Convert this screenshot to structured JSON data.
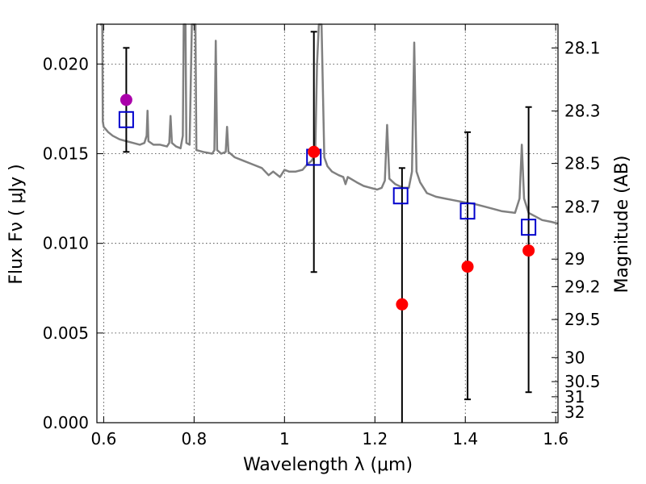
{
  "chart_data": {
    "type": "scatter",
    "xlabel": "Wavelength  λ (μm)",
    "ylabel": "Flux  Fν  ( μJy )",
    "ylabel_right": "Magnitude (AB)",
    "xlim": [
      0.585,
      1.605
    ],
    "ylim": [
      0.0,
      0.02222
    ],
    "grid": true,
    "x_ticks": [
      {
        "value": 0.6,
        "label": "0.6"
      },
      {
        "value": 0.8,
        "label": "0.8"
      },
      {
        "value": 1.0,
        "label": "1"
      },
      {
        "value": 1.2,
        "label": "1.2"
      },
      {
        "value": 1.4,
        "label": "1.4"
      },
      {
        "value": 1.6,
        "label": "1.6"
      }
    ],
    "y_ticks": [
      {
        "value": 0.0,
        "label": "0.000"
      },
      {
        "value": 0.005,
        "label": "0.005"
      },
      {
        "value": 0.01,
        "label": "0.010"
      },
      {
        "value": 0.015,
        "label": "0.015"
      },
      {
        "value": 0.02,
        "label": "0.020"
      }
    ],
    "right_ticks": [
      {
        "label": "28.1",
        "mag": 28.1
      },
      {
        "label": "28.3",
        "mag": 28.3
      },
      {
        "label": "28.5",
        "mag": 28.5
      },
      {
        "label": "28.7",
        "mag": 28.7
      },
      {
        "label": "29",
        "mag": 29.0
      },
      {
        "label": "29.2",
        "mag": 29.2
      },
      {
        "label": "29.5",
        "mag": 29.5
      },
      {
        "label": "30",
        "mag": 30.0
      },
      {
        "label": "30.5",
        "mag": 30.5
      },
      {
        "label": "31",
        "mag": 31.0
      },
      {
        "label": "32",
        "mag": 32.0
      }
    ],
    "colors": {
      "model": "#808080",
      "observed": "#ff0000",
      "observed_special": "#aa00aa",
      "model_box": "#0000cc",
      "errorbar": "#000000"
    },
    "model_spectrum": [
      [
        0.592,
        0.0222
      ],
      [
        0.597,
        0.0222
      ],
      [
        0.598,
        0.0168
      ],
      [
        0.6,
        0.0165
      ],
      [
        0.61,
        0.0162
      ],
      [
        0.62,
        0.016
      ],
      [
        0.635,
        0.0158
      ],
      [
        0.65,
        0.0157
      ],
      [
        0.665,
        0.0156
      ],
      [
        0.68,
        0.0155
      ],
      [
        0.69,
        0.0156
      ],
      [
        0.695,
        0.016
      ],
      [
        0.697,
        0.0174
      ],
      [
        0.699,
        0.0157
      ],
      [
        0.71,
        0.0155
      ],
      [
        0.725,
        0.0155
      ],
      [
        0.74,
        0.0154
      ],
      [
        0.745,
        0.0156
      ],
      [
        0.748,
        0.0171
      ],
      [
        0.751,
        0.0156
      ],
      [
        0.76,
        0.0154
      ],
      [
        0.77,
        0.0153
      ],
      [
        0.775,
        0.016
      ],
      [
        0.777,
        0.0222
      ],
      [
        0.781,
        0.0222
      ],
      [
        0.783,
        0.0156
      ],
      [
        0.79,
        0.0155
      ],
      [
        0.795,
        0.0222
      ],
      [
        0.803,
        0.0222
      ],
      [
        0.805,
        0.0152
      ],
      [
        0.82,
        0.0151
      ],
      [
        0.84,
        0.015
      ],
      [
        0.845,
        0.0152
      ],
      [
        0.848,
        0.0213
      ],
      [
        0.851,
        0.0152
      ],
      [
        0.86,
        0.015
      ],
      [
        0.87,
        0.0151
      ],
      [
        0.873,
        0.0165
      ],
      [
        0.876,
        0.0151
      ],
      [
        0.89,
        0.0148
      ],
      [
        0.91,
        0.0146
      ],
      [
        0.93,
        0.0144
      ],
      [
        0.95,
        0.0142
      ],
      [
        0.965,
        0.0138
      ],
      [
        0.975,
        0.014
      ],
      [
        0.99,
        0.0137
      ],
      [
        1.0,
        0.0141
      ],
      [
        1.01,
        0.014
      ],
      [
        1.025,
        0.014
      ],
      [
        1.04,
        0.0141
      ],
      [
        1.05,
        0.0144
      ],
      [
        1.06,
        0.0146
      ],
      [
        1.068,
        0.015
      ],
      [
        1.072,
        0.02
      ],
      [
        1.076,
        0.0222
      ],
      [
        1.082,
        0.0222
      ],
      [
        1.088,
        0.0148
      ],
      [
        1.095,
        0.0143
      ],
      [
        1.105,
        0.014
      ],
      [
        1.12,
        0.0138
      ],
      [
        1.13,
        0.0137
      ],
      [
        1.135,
        0.0133
      ],
      [
        1.14,
        0.0137
      ],
      [
        1.16,
        0.0134
      ],
      [
        1.175,
        0.0132
      ],
      [
        1.19,
        0.0131
      ],
      [
        1.205,
        0.013
      ],
      [
        1.215,
        0.0131
      ],
      [
        1.222,
        0.0135
      ],
      [
        1.227,
        0.0166
      ],
      [
        1.232,
        0.0136
      ],
      [
        1.245,
        0.0133
      ],
      [
        1.262,
        0.0131
      ],
      [
        1.275,
        0.0131
      ],
      [
        1.282,
        0.014
      ],
      [
        1.287,
        0.0212
      ],
      [
        1.292,
        0.014
      ],
      [
        1.3,
        0.0134
      ],
      [
        1.315,
        0.0128
      ],
      [
        1.335,
        0.0126
      ],
      [
        1.355,
        0.0125
      ],
      [
        1.375,
        0.0124
      ],
      [
        1.395,
        0.0123
      ],
      [
        1.42,
        0.0122
      ],
      [
        1.45,
        0.012
      ],
      [
        1.48,
        0.0118
      ],
      [
        1.51,
        0.0117
      ],
      [
        1.52,
        0.0125
      ],
      [
        1.525,
        0.0155
      ],
      [
        1.53,
        0.0125
      ],
      [
        1.54,
        0.0117
      ],
      [
        1.555,
        0.0115
      ],
      [
        1.57,
        0.0113
      ],
      [
        1.59,
        0.0112
      ],
      [
        1.605,
        0.0111
      ]
    ],
    "model_points": [
      {
        "x": 0.65,
        "y": 0.0169
      },
      {
        "x": 1.065,
        "y": 0.0148
      },
      {
        "x": 1.257,
        "y": 0.01265
      },
      {
        "x": 1.405,
        "y": 0.0118
      },
      {
        "x": 1.54,
        "y": 0.0109
      }
    ],
    "observed_points": [
      {
        "x": 0.65,
        "y": 0.018,
        "yerr_low": 0.0151,
        "yerr_high": 0.0209,
        "special": true
      },
      {
        "x": 1.065,
        "y": 0.0151,
        "yerr_low": 0.0084,
        "yerr_high": 0.0218
      },
      {
        "x": 1.26,
        "y": 0.0066,
        "yerr_low": 0.0,
        "yerr_high": 0.0142
      },
      {
        "x": 1.405,
        "y": 0.0087,
        "yerr_low": 0.0013,
        "yerr_high": 0.0162
      },
      {
        "x": 1.54,
        "y": 0.0096,
        "yerr_low": 0.0017,
        "yerr_high": 0.0176
      }
    ]
  }
}
